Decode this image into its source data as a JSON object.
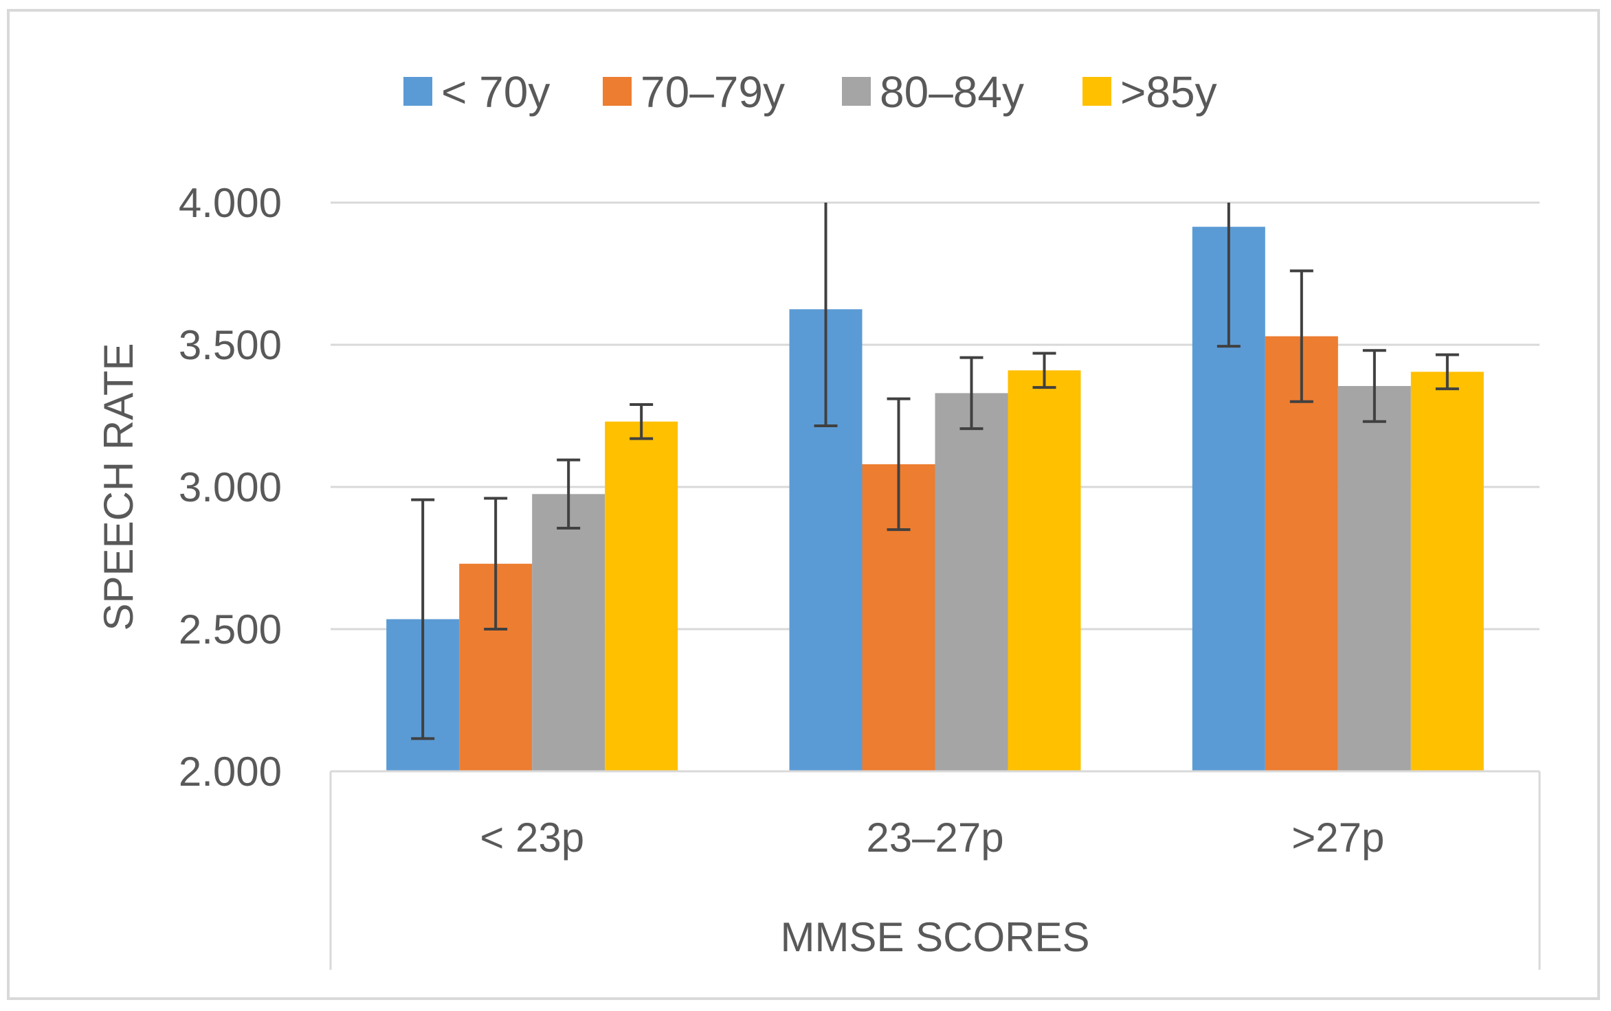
{
  "chart_data": {
    "type": "bar",
    "title": "",
    "categories": [
      "< 23p",
      "23–27p",
      ">27p"
    ],
    "series": [
      {
        "name": "< 70y",
        "color": "#5b9bd5",
        "values": [
          2.535,
          3.625,
          3.915
        ],
        "error": [
          0.42,
          0.41,
          0.42
        ]
      },
      {
        "name": "70–79y",
        "color": "#ed7d31",
        "values": [
          2.73,
          3.08,
          3.53
        ],
        "error": [
          0.23,
          0.23,
          0.23
        ]
      },
      {
        "name": "80–84y",
        "color": "#a5a5a5",
        "values": [
          2.975,
          3.33,
          3.355
        ],
        "error": [
          0.12,
          0.125,
          0.125
        ]
      },
      {
        "name": ">85y",
        "color": "#ffc000",
        "values": [
          3.23,
          3.41,
          3.405
        ],
        "error": [
          0.06,
          0.06,
          0.06
        ]
      }
    ],
    "xlabel": "MMSE SCORES",
    "ylabel": "SPEECH RATE",
    "ylim": [
      2.0,
      4.0
    ],
    "yticks": [
      2.0,
      2.5,
      3.0,
      3.5,
      4.0
    ],
    "ytick_labels": [
      "2.000",
      "2.500",
      "3.000",
      "3.500",
      "4.000"
    ],
    "grid": true,
    "legend_position": "top",
    "gridline_color": "#d9d9d9",
    "error_bar_color": "#404040"
  }
}
